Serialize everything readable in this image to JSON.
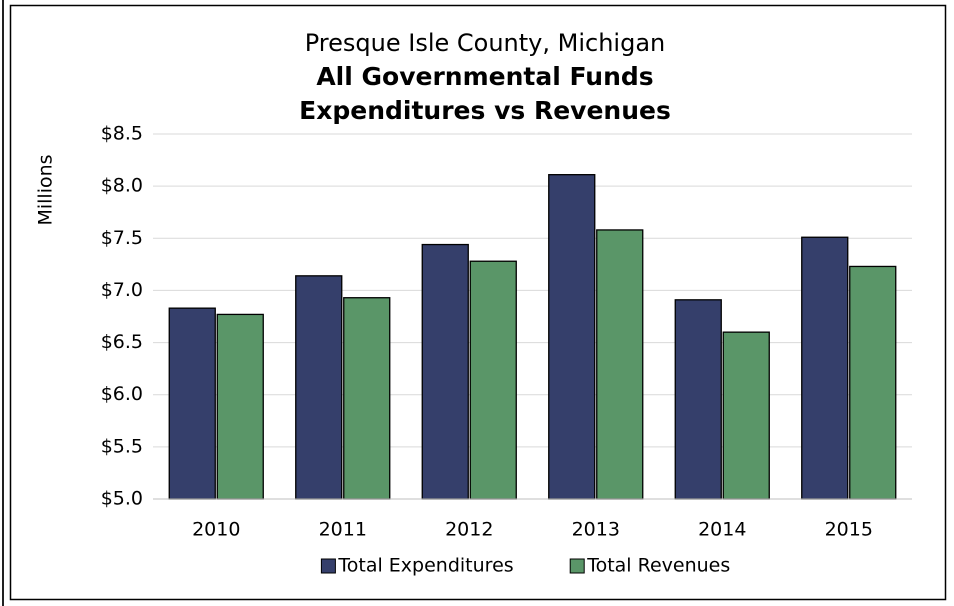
{
  "chart_data": {
    "type": "bar",
    "header": "Presque Isle County, Michigan",
    "title": [
      "All Governmental Funds",
      "Expenditures vs Revenues"
    ],
    "y_label": "Millions",
    "categories": [
      "2010",
      "2011",
      "2012",
      "2013",
      "2014",
      "2015"
    ],
    "series": [
      {
        "name": "Total Expenditures",
        "color": "#353f6b",
        "values": [
          6.83,
          7.14,
          7.44,
          8.11,
          6.91,
          7.51
        ]
      },
      {
        "name": "Total Revenues",
        "color": "#5a9668",
        "values": [
          6.77,
          6.93,
          7.28,
          7.58,
          6.6,
          7.23
        ]
      }
    ],
    "ylim": [
      5.0,
      8.5
    ],
    "yticks": [
      {
        "value": 5.0,
        "label": "$5.0"
      },
      {
        "value": 5.5,
        "label": "$5.5"
      },
      {
        "value": 6.0,
        "label": "$6.0"
      },
      {
        "value": 6.5,
        "label": "$6.5"
      },
      {
        "value": 7.0,
        "label": "$7.0"
      },
      {
        "value": 7.5,
        "label": "$7.5"
      },
      {
        "value": 8.0,
        "label": "$8.0"
      },
      {
        "value": 8.5,
        "label": "$8.5"
      }
    ],
    "grid": true,
    "legend": "bottom"
  }
}
